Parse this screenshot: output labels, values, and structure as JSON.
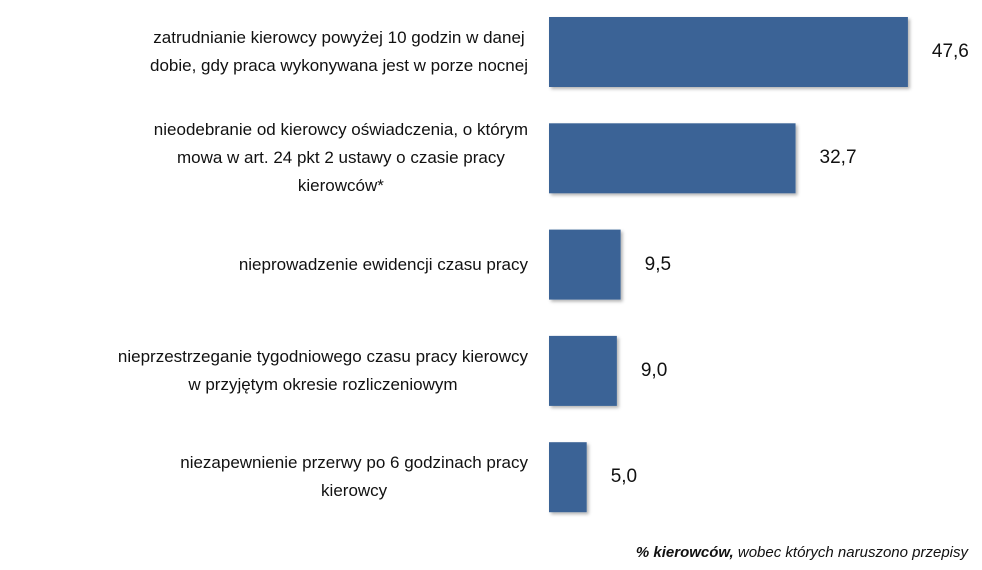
{
  "chart_data": {
    "type": "bar",
    "orientation": "horizontal",
    "categories": [
      "zatrudnianie kierowcy powyżej 10 godzin w danej\ndobie, gdy praca wykonywana jest w porze nocnej",
      "nieodebranie od kierowcy oświadczenia, o którym\nmowa w art. 24 pkt 2 ustawy o czasie pracy\nkierowców*",
      "nieprowadzenie ewidencji czasu pracy",
      "nieprzestrzeganie tygodniowego czasu pracy kierowcy\nw przyjętym okresie rozliczeniowym",
      "niezapewnienie przerwy po 6 godzinach pracy\nkierowcy"
    ],
    "values": [
      47.6,
      32.7,
      9.5,
      9.0,
      5.0
    ],
    "value_labels": [
      "47,6",
      "32,7",
      "9,5",
      "9,0",
      "5,0"
    ],
    "color": "#3a6496",
    "xlim": [
      0,
      50
    ],
    "xlabel": [
      "% kierowców,",
      "wobec których naruszono przepisy"
    ]
  }
}
